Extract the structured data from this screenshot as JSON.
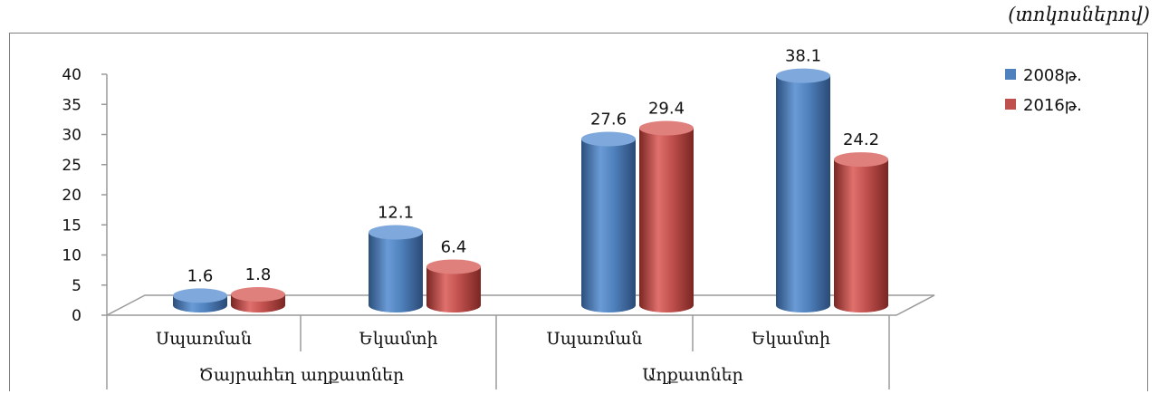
{
  "unit_note": "(տոկոսներով)",
  "chart_data": {
    "type": "bar",
    "categories": [
      "Սպառման",
      "Եկամտի",
      "Սպառման",
      "Եկամտի"
    ],
    "groups": [
      {
        "label": "Ծայրահեղ աղքատներ",
        "categories": [
          0,
          1
        ]
      },
      {
        "label": "Աղքատներ",
        "categories": [
          2,
          3
        ]
      }
    ],
    "series": [
      {
        "name": "2008թ.",
        "values": [
          1.6,
          12.1,
          27.6,
          38.1
        ],
        "color": "#4f81bd"
      },
      {
        "name": "2016թ.",
        "values": [
          1.8,
          6.4,
          29.4,
          24.2
        ],
        "color": "#c0504d"
      }
    ],
    "y_ticks": [
      "0",
      "5",
      "10",
      "15",
      "20",
      "25",
      "30",
      "35",
      "40"
    ],
    "ylim": [
      0,
      40
    ],
    "grid": false,
    "legend_position": "top-right",
    "style": "3d-cylinder"
  }
}
